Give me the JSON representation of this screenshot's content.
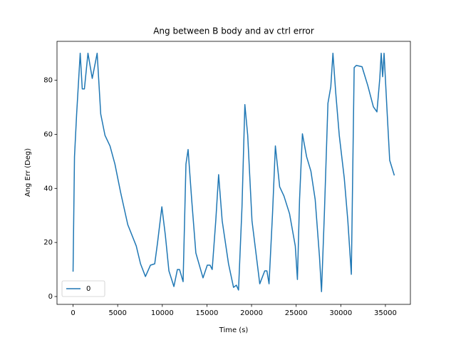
{
  "chart_data": {
    "type": "line",
    "title": "Ang between B body and av ctrl error",
    "xlabel": "Time (s)",
    "ylabel": "Ang Err (Deg)",
    "x": [
      0,
      160,
      400,
      800,
      1030,
      1270,
      1670,
      2150,
      2700,
      3100,
      3580,
      4140,
      4690,
      5330,
      6130,
      7080,
      7560,
      8110,
      8670,
      9150,
      9470,
      9950,
      10340,
      10740,
      11300,
      11690,
      11930,
      12330,
      12650,
      12890,
      13290,
      13760,
      14560,
      15040,
      15350,
      15590,
      15990,
      16310,
      16710,
      17420,
      17980,
      18300,
      18540,
      18930,
      19250,
      19570,
      20050,
      20920,
      21480,
      21720,
      21960,
      22350,
      22670,
      23150,
      23630,
      24260,
      24900,
      25140,
      25380,
      25700,
      26170,
      26650,
      27130,
      27610,
      27840,
      28160,
      28560,
      28880,
      29120,
      29430,
      29830,
      30390,
      30790,
      31180,
      31500,
      31740,
      32380,
      33020,
      33650,
      34050,
      34370,
      34530,
      34690,
      34850,
      35160,
      35480,
      36000
    ],
    "series": [
      {
        "name": "0",
        "color": "#1f77b4",
        "values": [
          9.2,
          51.7,
          67.5,
          90,
          76.8,
          76.8,
          90,
          80.7,
          90,
          67.5,
          59.6,
          55.7,
          49,
          38.5,
          26.6,
          18.7,
          12.1,
          7.4,
          11.6,
          12.1,
          20,
          33.2,
          22.7,
          9.5,
          3.7,
          10,
          10,
          5.5,
          49,
          54.4,
          35.9,
          16.1,
          6.9,
          11.6,
          11.6,
          10,
          28,
          45.1,
          28,
          12.1,
          3.4,
          4.2,
          2.4,
          33.2,
          71,
          59.6,
          28,
          4.7,
          9.5,
          9.5,
          4.7,
          30.6,
          55.7,
          40.6,
          37.2,
          30.6,
          18.7,
          6.3,
          35.9,
          60.2,
          51.7,
          46.4,
          35.9,
          14.8,
          1.8,
          30.6,
          71.5,
          77.6,
          90,
          75.5,
          59.6,
          43.8,
          28,
          8.2,
          84.7,
          85.5,
          85,
          78.1,
          70.2,
          68.3,
          80.7,
          90,
          81.3,
          90,
          70.2,
          50.4,
          44.8
        ]
      }
    ],
    "xlim": [
      -1800,
      37800
    ],
    "ylim": [
      -2.9,
      94.4
    ],
    "xticks": [
      0,
      5000,
      10000,
      15000,
      20000,
      25000,
      30000,
      35000
    ],
    "yticks": [
      0,
      20,
      40,
      60,
      80
    ],
    "legend": "lower left"
  }
}
